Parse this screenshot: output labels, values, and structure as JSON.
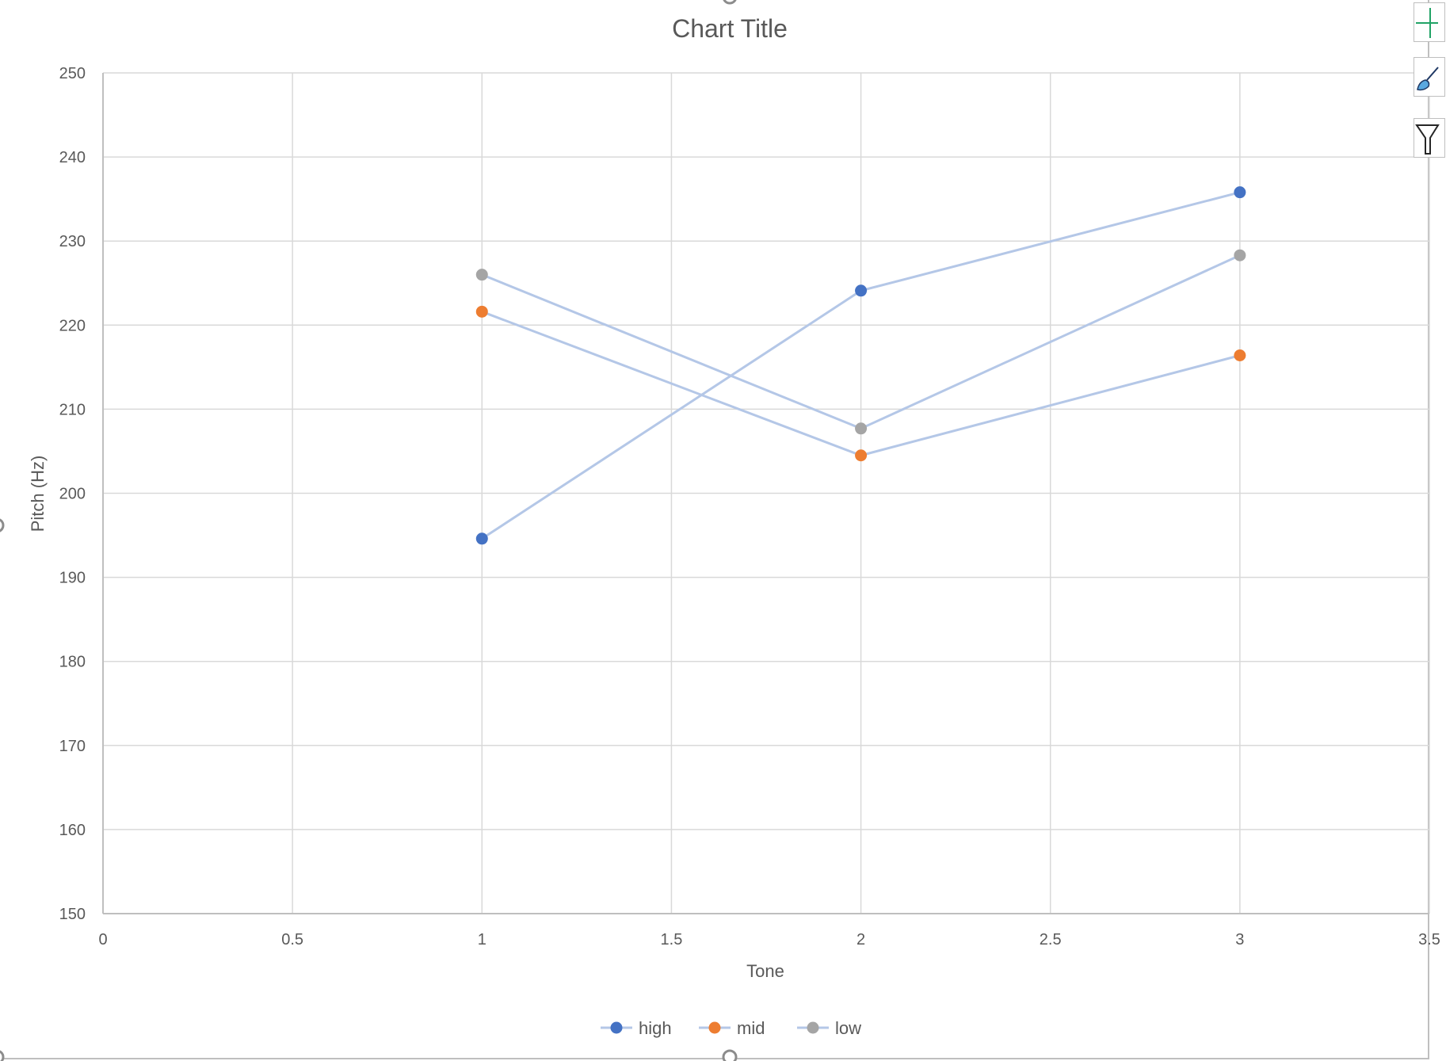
{
  "chart_data": {
    "type": "scatter",
    "title": "Chart Title",
    "xlabel": "Tone",
    "ylabel": "Pitch (Hz)",
    "xlim": [
      0,
      3.5
    ],
    "ylim": [
      150,
      250
    ],
    "xticks": [
      0,
      0.5,
      1,
      1.5,
      2,
      2.5,
      3,
      3.5
    ],
    "yticks": [
      150,
      160,
      170,
      180,
      190,
      200,
      210,
      220,
      230,
      240,
      250
    ],
    "xtick_labels": [
      "0",
      "0.5",
      "1",
      "1.5",
      "2",
      "2.5",
      "3",
      "3.5"
    ],
    "ytick_labels": [
      "150",
      "160",
      "170",
      "180",
      "190",
      "200",
      "210",
      "220",
      "230",
      "240",
      "250"
    ],
    "grid": true,
    "legend_position": "bottom",
    "series": [
      {
        "name": "high",
        "color": "#4472C4",
        "x": [
          1,
          2,
          3
        ],
        "y": [
          194.6,
          224.1,
          235.8
        ]
      },
      {
        "name": "mid",
        "color": "#ED7D31",
        "x": [
          1,
          2,
          3
        ],
        "y": [
          221.6,
          204.5,
          216.4
        ]
      },
      {
        "name": "low",
        "color": "#A5A5A5",
        "x": [
          1,
          2,
          3
        ],
        "y": [
          226.0,
          207.7,
          228.3
        ]
      }
    ],
    "line_color": "#b4c7e7"
  },
  "toolbar": {
    "chart_elements_icon": "plus-icon",
    "chart_styles_icon": "paintbrush-icon",
    "chart_filters_icon": "funnel-icon"
  }
}
